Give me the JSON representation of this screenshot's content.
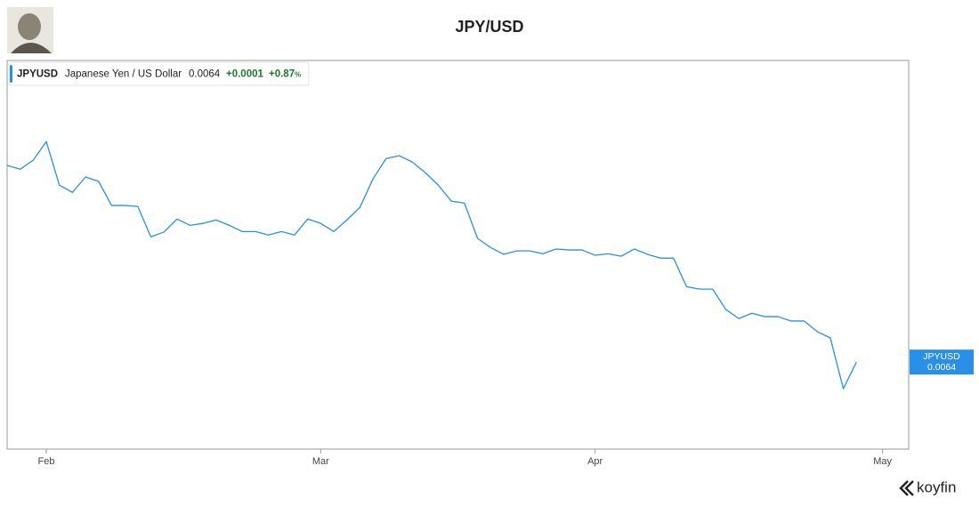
{
  "chart_data": {
    "type": "line",
    "title": "JPY/USD",
    "brand": "koyfin",
    "legend": {
      "symbol": "JPYUSD",
      "name": "Japanese Yen / US Dollar",
      "change": "+0.0001",
      "change_pct": "+0.87",
      "pct_unit": "%"
    },
    "series": [
      {
        "name": "JPYUSD",
        "color": "#2a8fe6",
        "values": [
          0.006807,
          0.006799,
          0.006818,
          0.006856,
          0.006766,
          0.006751,
          0.006783,
          0.006774,
          0.006724,
          0.006724,
          0.006722,
          0.006659,
          0.006669,
          0.006696,
          0.006683,
          0.006687,
          0.006694,
          0.006683,
          0.00667,
          0.00667,
          0.006663,
          0.00667,
          0.006663,
          0.006696,
          0.006687,
          0.00667,
          0.006694,
          0.00672,
          0.006779,
          0.006821,
          0.006827,
          0.006814,
          0.006792,
          0.006766,
          0.006733,
          0.006729,
          0.006656,
          0.006637,
          0.006623,
          0.00663,
          0.00663,
          0.006624,
          0.006634,
          0.006632,
          0.006632,
          0.006621,
          0.006624,
          0.006619,
          0.006634,
          0.006623,
          0.006615,
          0.006615,
          0.006556,
          0.006551,
          0.006551,
          0.006509,
          0.00649,
          0.006501,
          0.006494,
          0.006494,
          0.006485,
          0.006485,
          0.006463,
          0.00645,
          0.006345,
          0.0064
        ]
      }
    ],
    "xlim": [
      0,
      69
    ],
    "xticks": [
      {
        "value": 3,
        "label": "Feb"
      },
      {
        "value": 24,
        "label": "Mar"
      },
      {
        "value": 45,
        "label": "Apr"
      },
      {
        "value": 67,
        "label": "May"
      }
    ],
    "ylim": [
      0.00622,
      0.007024
    ]
  }
}
